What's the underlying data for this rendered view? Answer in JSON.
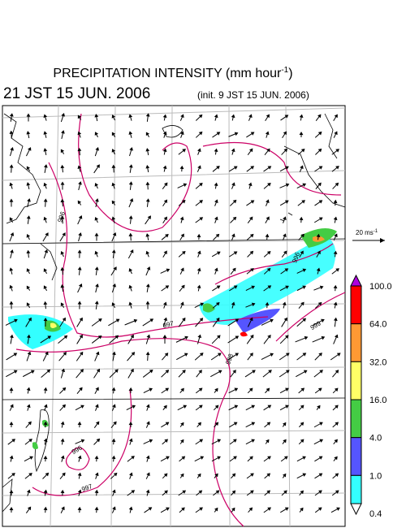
{
  "header": {
    "title": "PRECIPITATION INTENSITY (mm hour",
    "title_exp": "-1",
    "title_end": ")",
    "time": "21 JST 15 JUN. 2006",
    "init": "(init. 9 JST 15 JUN. 2006)"
  },
  "vector_key": {
    "label": "20 ms",
    "exp": "-1"
  },
  "colorbar": {
    "labels": [
      "100.0",
      "64.0",
      "32.0",
      "16.0",
      "4.0",
      "1.0",
      "0.4"
    ],
    "colors": [
      "#ff0000",
      "#ff9933",
      "#ffff66",
      "#44cc44",
      "#5555ff",
      "#33ffff"
    ],
    "over_color": "#b000e0",
    "under_color": "#ffffff"
  },
  "contour_labels": [
    "996",
    "996",
    "997",
    "998",
    "999",
    "996",
    "997"
  ]
}
